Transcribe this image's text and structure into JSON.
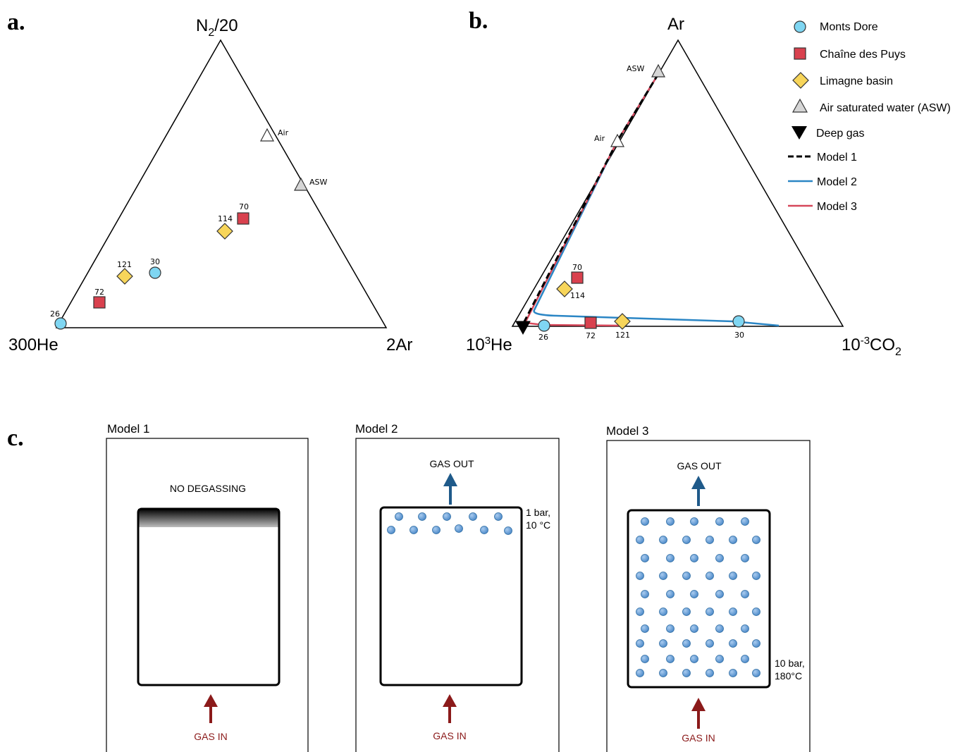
{
  "panel_labels": {
    "a": "a.",
    "b": "b.",
    "c": "c."
  },
  "legend": [
    {
      "key": "monts-dore",
      "label": "Monts Dore",
      "kind": "circle",
      "color": "#7fd6f2"
    },
    {
      "key": "chaine-des-puys",
      "label": "Chaîne des Puys",
      "kind": "square",
      "color": "#d9414e"
    },
    {
      "key": "limagne-basin",
      "label": "Limagne basin",
      "kind": "diamond",
      "color": "#f7d55a"
    },
    {
      "key": "asw",
      "label": "Air saturated water (ASW)",
      "kind": "triangle",
      "color": "#d6d6d6"
    },
    {
      "key": "deep-gas",
      "label": "Deep gas",
      "kind": "inv-triangle",
      "color": "#000000"
    },
    {
      "key": "model-1",
      "label": "Model 1",
      "kind": "dashed",
      "color": "#000000"
    },
    {
      "key": "model-2",
      "label": "Model 2",
      "kind": "line",
      "color": "#2b86c5"
    },
    {
      "key": "model-3",
      "label": "Model 3",
      "kind": "line",
      "color": "#d6475a"
    }
  ],
  "ternary_a": {
    "apex_top": {
      "pre": "N",
      "sub": "2",
      "post": "/20"
    },
    "apex_left": "300He",
    "apex_right": "2Ar",
    "refs": [
      {
        "label": "Air",
        "kind": "triangle-white"
      },
      {
        "label": "ASW",
        "kind": "triangle-grey"
      }
    ],
    "points": [
      {
        "label": "26",
        "group": "monts-dore"
      },
      {
        "label": "30",
        "group": "monts-dore"
      },
      {
        "label": "72",
        "group": "chaine-des-puys"
      },
      {
        "label": "70",
        "group": "chaine-des-puys"
      },
      {
        "label": "121",
        "group": "limagne-basin"
      },
      {
        "label": "114",
        "group": "limagne-basin"
      }
    ]
  },
  "ternary_b": {
    "apex_top": "Ar",
    "apex_left": {
      "base": "10",
      "sup": "3",
      "post": "He"
    },
    "apex_right": {
      "base": "10",
      "sup": "-3",
      "mid": "CO",
      "sub": "2"
    },
    "refs": [
      {
        "label": "ASW",
        "kind": "triangle-grey"
      },
      {
        "label": "Air",
        "kind": "triangle-white"
      },
      {
        "label": "",
        "kind": "deep-gas"
      }
    ],
    "points": [
      {
        "label": "26",
        "group": "monts-dore"
      },
      {
        "label": "30",
        "group": "monts-dore"
      },
      {
        "label": "72",
        "group": "chaine-des-puys"
      },
      {
        "label": "70",
        "group": "chaine-des-puys"
      },
      {
        "label": "121",
        "group": "limagne-basin"
      },
      {
        "label": "114",
        "group": "limagne-basin"
      }
    ]
  },
  "models": [
    {
      "title_pre": "Model ",
      "title_num": "1",
      "top_text": "NO DEGASSING",
      "conditions": [],
      "gas_in": "GAS IN",
      "bubbles": "none"
    },
    {
      "title_pre": "Model ",
      "title_num": "2",
      "top_text": "GAS OUT",
      "conditions": [
        "1 bar,",
        "10 °C"
      ],
      "gas_in": "GAS IN",
      "bubbles": "top"
    },
    {
      "title_pre": "Model ",
      "title_num": "3",
      "top_text": "GAS OUT",
      "conditions": [
        "10 bar,",
        "180°C"
      ],
      "gas_in": "GAS IN",
      "bubbles": "full"
    }
  ],
  "colors": {
    "gas_in_arrow": "#8b1a1a",
    "gas_out_arrow": "#1f5a8a",
    "bubble": "#5b9bd5",
    "bubble_stroke": "#2e6da4"
  }
}
